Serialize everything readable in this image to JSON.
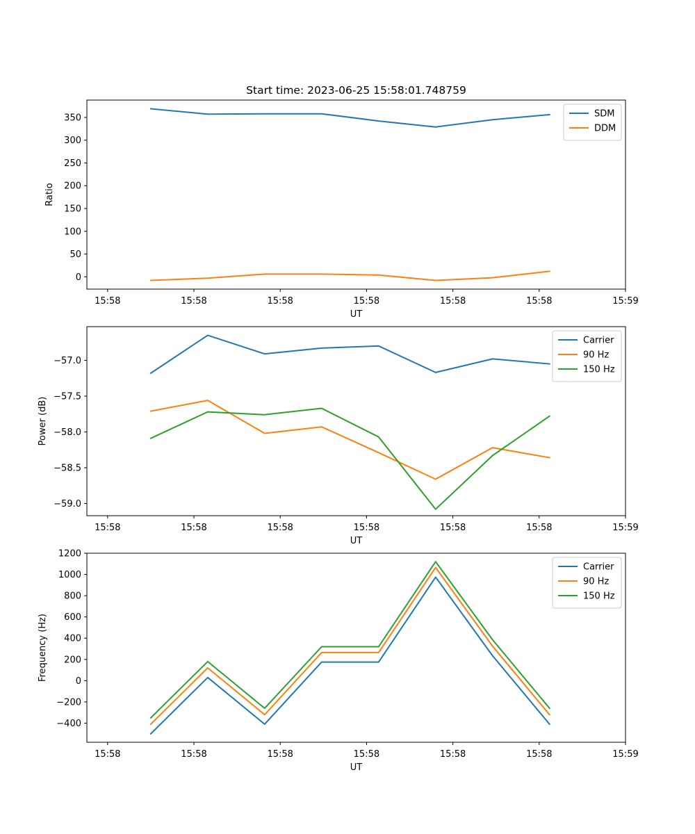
{
  "chart_data": [
    {
      "type": "line",
      "title": "Start time: 2023-06-25 15:58:01.748759",
      "xlabel": "UT",
      "ylabel": "Ratio",
      "x_tick_labels": [
        "15:58",
        "15:58",
        "15:58",
        "15:58",
        "15:58",
        "15:58",
        "15:59"
      ],
      "x_tick_seconds": [
        0,
        0.5,
        1.0,
        1.5,
        2.0,
        2.5,
        3.0
      ],
      "ylim": [
        -27,
        388
      ],
      "y_ticks": [
        0,
        50,
        100,
        150,
        200,
        250,
        300,
        350
      ],
      "x_seconds": [
        0.25,
        0.58,
        0.91,
        1.24,
        1.57,
        1.9,
        2.23,
        2.56
      ],
      "legend_position": "top-right",
      "series": [
        {
          "name": "SDM",
          "color": "#1f77b4",
          "values": [
            369,
            357,
            358,
            358,
            342,
            329,
            345,
            356
          ]
        },
        {
          "name": "DDM",
          "color": "#ff7f0e",
          "values": [
            -8,
            -3,
            6,
            6,
            4,
            -8,
            -2,
            12
          ]
        }
      ]
    },
    {
      "type": "line",
      "title": "",
      "xlabel": "UT",
      "ylabel": "Power (dB)",
      "x_tick_labels": [
        "15:58",
        "15:58",
        "15:58",
        "15:58",
        "15:58",
        "15:58",
        "15:59"
      ],
      "x_tick_seconds": [
        0,
        0.5,
        1.0,
        1.5,
        2.0,
        2.5,
        3.0
      ],
      "ylim": [
        -59.17,
        -56.53
      ],
      "y_ticks": [
        -59.0,
        -58.5,
        -58.0,
        -57.5,
        -57.0
      ],
      "y_tick_labels": [
        "−59.0",
        "−58.5",
        "−58.0",
        "−57.5",
        "−57.0"
      ],
      "x_seconds": [
        0.25,
        0.58,
        0.91,
        1.24,
        1.57,
        1.9,
        2.23,
        2.56
      ],
      "legend_position": "top-right",
      "series": [
        {
          "name": "Carrier",
          "color": "#1f77b4",
          "values": [
            -57.18,
            -56.65,
            -56.91,
            -56.83,
            -56.8,
            -57.17,
            -56.98,
            -57.05
          ]
        },
        {
          "name": "90 Hz",
          "color": "#ff7f0e",
          "values": [
            -57.71,
            -57.56,
            -58.02,
            -57.93,
            -58.29,
            -58.66,
            -58.22,
            -58.36
          ]
        },
        {
          "name": "150 Hz",
          "color": "#2ca02c",
          "values": [
            -58.09,
            -57.72,
            -57.76,
            -57.67,
            -58.07,
            -59.08,
            -58.33,
            -57.78
          ]
        }
      ]
    },
    {
      "type": "line",
      "title": "",
      "xlabel": "UT",
      "ylabel": "Frequency (Hz)",
      "x_tick_labels": [
        "15:58",
        "15:58",
        "15:58",
        "15:58",
        "15:58",
        "15:58",
        "15:59"
      ],
      "x_tick_seconds": [
        0,
        0.5,
        1.0,
        1.5,
        2.0,
        2.5,
        3.0
      ],
      "ylim": [
        -580,
        1200
      ],
      "y_ticks": [
        -400,
        -200,
        0,
        200,
        400,
        600,
        800,
        1000,
        1200
      ],
      "y_tick_labels": [
        "−400",
        "−200",
        "0",
        "200",
        "400",
        "600",
        "800",
        "1000",
        "1200"
      ],
      "x_seconds": [
        0.25,
        0.58,
        0.91,
        1.24,
        1.57,
        1.9,
        2.23,
        2.56
      ],
      "legend_position": "top-right",
      "series": [
        {
          "name": "Carrier",
          "color": "#1f77b4",
          "values": [
            -500,
            30,
            -410,
            175,
            175,
            975,
            235,
            -410
          ]
        },
        {
          "name": "90 Hz",
          "color": "#ff7f0e",
          "values": [
            -410,
            120,
            -320,
            265,
            265,
            1065,
            325,
            -320
          ]
        },
        {
          "name": "150 Hz",
          "color": "#2ca02c",
          "values": [
            -350,
            180,
            -260,
            320,
            320,
            1120,
            385,
            -260
          ]
        }
      ]
    }
  ]
}
